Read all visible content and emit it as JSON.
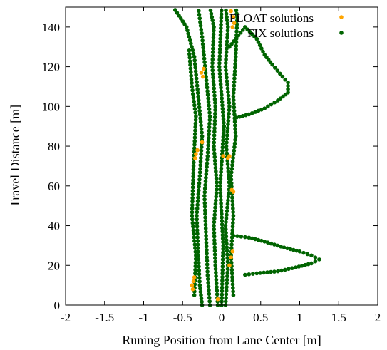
{
  "chart_data": {
    "type": "scatter",
    "title": "",
    "xlabel": "Runing Position from Lane Center [m]",
    "ylabel": "Travel Distance [m]",
    "xlim": [
      -2,
      2
    ],
    "ylim": [
      0,
      150
    ],
    "x_ticks": [
      "-2",
      "-1.5",
      "-1",
      "-0.5",
      "0",
      "0.5",
      "1",
      "1.5",
      "2"
    ],
    "y_ticks": [
      "0",
      "20",
      "40",
      "60",
      "80",
      "100",
      "120",
      "140"
    ],
    "grid": false,
    "legend_position": "top-right",
    "series": [
      {
        "name": "FLOAT solutions",
        "color": "#ffa500",
        "points": [
          [
            -0.37,
            8
          ],
          [
            -0.38,
            10
          ],
          [
            -0.36,
            12
          ],
          [
            -0.35,
            14
          ],
          [
            -0.05,
            3
          ],
          [
            0.12,
            24
          ],
          [
            0.14,
            27
          ],
          [
            0.1,
            20
          ],
          [
            0.15,
            57
          ],
          [
            0.13,
            58
          ],
          [
            -0.34,
            74
          ],
          [
            -0.33,
            76
          ],
          [
            -0.31,
            78
          ],
          [
            0.02,
            75
          ],
          [
            0.08,
            74
          ],
          [
            0.1,
            75
          ],
          [
            -0.25,
            82
          ],
          [
            -0.24,
            115
          ],
          [
            -0.26,
            117
          ],
          [
            -0.23,
            119
          ],
          [
            0.14,
            140
          ],
          [
            0.16,
            142
          ],
          [
            0.15,
            145
          ],
          [
            0.12,
            148
          ]
        ]
      },
      {
        "name": "FIX solutions",
        "color": "#006400",
        "trace_segments": [
          [
            [
              -0.25,
              0
            ],
            [
              -0.28,
              10
            ],
            [
              -0.3,
              25
            ],
            [
              -0.32,
              45
            ],
            [
              -0.28,
              65
            ],
            [
              -0.25,
              85
            ],
            [
              -0.3,
              105
            ],
            [
              -0.35,
              125
            ],
            [
              -0.45,
              140
            ],
            [
              -0.62,
              150
            ]
          ],
          [
            [
              -0.15,
              0
            ],
            [
              -0.18,
              15
            ],
            [
              -0.2,
              35
            ],
            [
              -0.22,
              55
            ],
            [
              -0.18,
              75
            ],
            [
              -0.15,
              95
            ],
            [
              -0.2,
              115
            ],
            [
              -0.25,
              135
            ],
            [
              -0.3,
              150
            ]
          ],
          [
            [
              -0.05,
              0
            ],
            [
              -0.08,
              20
            ],
            [
              -0.1,
              40
            ],
            [
              -0.06,
              60
            ],
            [
              -0.1,
              80
            ],
            [
              -0.08,
              100
            ],
            [
              -0.12,
              120
            ],
            [
              -0.1,
              140
            ],
            [
              -0.15,
              150
            ]
          ],
          [
            [
              0.05,
              0
            ],
            [
              0.08,
              20
            ],
            [
              0.05,
              40
            ],
            [
              0.1,
              60
            ],
            [
              0.06,
              80
            ],
            [
              0.1,
              100
            ],
            [
              0.05,
              120
            ],
            [
              0.08,
              140
            ],
            [
              0.05,
              150
            ]
          ],
          [
            [
              0.15,
              5
            ],
            [
              0.12,
              25
            ],
            [
              0.15,
              45
            ],
            [
              0.12,
              65
            ],
            [
              0.18,
              85
            ],
            [
              0.15,
              105
            ],
            [
              0.18,
              125
            ],
            [
              0.2,
              145
            ],
            [
              0.18,
              150
            ]
          ],
          [
            [
              -0.35,
              5
            ],
            [
              -0.33,
              25
            ],
            [
              -0.38,
              45
            ],
            [
              -0.36,
              70
            ],
            [
              -0.33,
              95
            ],
            [
              -0.38,
              110
            ],
            [
              -0.42,
              130
            ]
          ],
          [
            [
              0.0,
              0
            ],
            [
              0.02,
              30
            ],
            [
              -0.02,
              60
            ],
            [
              0.03,
              90
            ],
            [
              -0.03,
              120
            ],
            [
              0.0,
              150
            ]
          ],
          [
            [
              0.1,
              130
            ],
            [
              0.3,
              140
            ],
            [
              0.45,
              134
            ],
            [
              0.55,
              126
            ],
            [
              0.65,
              121
            ],
            [
              0.78,
              115
            ],
            [
              0.85,
              112
            ],
            [
              0.85,
              107
            ],
            [
              0.72,
              103
            ],
            [
              0.55,
              99
            ],
            [
              0.35,
              96
            ],
            [
              0.15,
              94
            ]
          ],
          [
            [
              0.15,
              35
            ],
            [
              0.35,
              34
            ],
            [
              0.55,
              32
            ],
            [
              0.8,
              29
            ],
            [
              1.0,
              27
            ],
            [
              1.15,
              25
            ],
            [
              1.25,
              23
            ],
            [
              1.15,
              21
            ],
            [
              0.95,
              19
            ],
            [
              0.72,
              17
            ],
            [
              0.45,
              16
            ],
            [
              0.25,
              15
            ]
          ]
        ]
      }
    ]
  }
}
